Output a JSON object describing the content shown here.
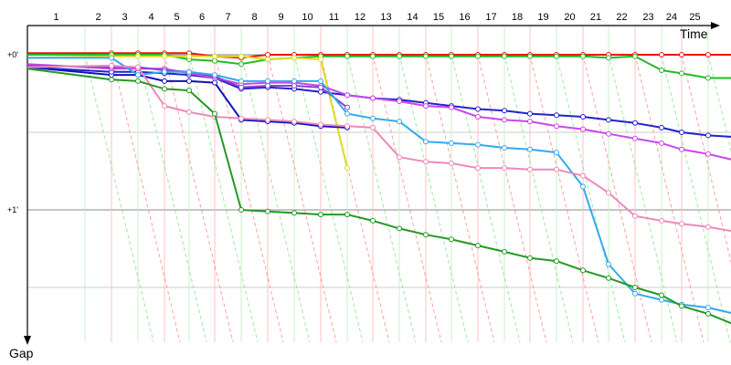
{
  "chart_data": {
    "type": "line",
    "xlabel": "Time",
    "ylabel": "Gap",
    "x_unit": "lap",
    "y_unit": "laps behind leader",
    "xlim": [
      0,
      26
    ],
    "ylim": [
      0,
      2.6
    ],
    "lap_labels": [
      "1",
      "2",
      "3",
      "4",
      "5",
      "6",
      "7",
      "8",
      "9",
      "10",
      "11",
      "12",
      "13",
      "14",
      "15",
      "16",
      "17",
      "18",
      "19",
      "20",
      "21",
      "22",
      "23",
      "24",
      "25"
    ],
    "y_ticks": [
      {
        "label": "+0'",
        "value": 0
      },
      {
        "label": "+1'",
        "value": 1.0
      }
    ],
    "grid": true,
    "legend": "none",
    "diagonal_guides": [
      "#ff8080",
      "#80e080"
    ],
    "series": [
      {
        "color": "#ee1111",
        "x": [
          0,
          2,
          3,
          4,
          5,
          6,
          7,
          8,
          9,
          10,
          11,
          12,
          13,
          14,
          15,
          16,
          17,
          18,
          19,
          20,
          21,
          22,
          23,
          24,
          25,
          26
        ],
        "y": [
          -0.01,
          -0.01,
          -0.01,
          -0.01,
          -0.01,
          0.01,
          0.02,
          0.0,
          0.0,
          0.0,
          0.0,
          0.0,
          0.0,
          0.0,
          0.0,
          0.0,
          0.0,
          0.0,
          0.0,
          0.0,
          0.0,
          0.0,
          0.0,
          0.0,
          0.0,
          0.0
        ]
      },
      {
        "color": "#22bb22",
        "x": [
          0,
          2,
          3,
          4,
          5,
          6,
          7,
          8,
          9,
          10,
          11,
          12,
          13,
          14,
          15,
          16,
          17,
          18,
          19,
          20,
          21,
          22,
          23,
          24,
          25,
          26
        ],
        "y": [
          0.0,
          0.0,
          0.0,
          0.0,
          0.03,
          0.04,
          0.06,
          0.03,
          0.02,
          0.01,
          0.01,
          0.01,
          0.01,
          0.01,
          0.01,
          0.01,
          0.01,
          0.01,
          0.01,
          0.01,
          0.02,
          0.01,
          0.1,
          0.12,
          0.15,
          0.15
        ]
      },
      {
        "color": "#dddd22",
        "x": [
          0,
          2,
          3,
          4,
          5,
          6,
          7,
          8,
          9,
          10,
          11
        ],
        "y": [
          0.02,
          0.01,
          0.01,
          0.01,
          0.01,
          0.01,
          0.01,
          0.03,
          0.02,
          0.03,
          0.73
        ]
      },
      {
        "color": "#1111bb",
        "x": [
          0,
          2,
          3,
          4,
          5,
          6,
          7,
          8,
          9,
          10,
          11
        ],
        "y": [
          0.08,
          0.13,
          0.13,
          0.17,
          0.17,
          0.18,
          0.42,
          0.43,
          0.44,
          0.46,
          0.47
        ]
      },
      {
        "color": "#2222cc",
        "x": [
          0,
          2,
          3,
          4,
          5,
          6,
          7,
          8,
          9,
          10,
          11,
          12,
          13,
          14,
          15,
          16,
          17,
          18,
          19,
          20,
          21,
          22,
          23,
          24,
          25,
          26
        ],
        "y": [
          0.08,
          0.11,
          0.11,
          0.12,
          0.13,
          0.15,
          0.22,
          0.21,
          0.22,
          0.24,
          0.26,
          0.28,
          0.29,
          0.31,
          0.33,
          0.35,
          0.36,
          0.38,
          0.39,
          0.4,
          0.42,
          0.44,
          0.47,
          0.5,
          0.52,
          0.53
        ]
      },
      {
        "color": "#cc44ee",
        "x": [
          0,
          2,
          3,
          4,
          5,
          6,
          7,
          8,
          9,
          10,
          11,
          12,
          13,
          14,
          15,
          16,
          17,
          18,
          19,
          20,
          21,
          22,
          23,
          24,
          25,
          26
        ],
        "y": [
          0.06,
          0.09,
          0.09,
          0.09,
          0.12,
          0.15,
          0.19,
          0.18,
          0.18,
          0.2,
          0.26,
          0.28,
          0.3,
          0.33,
          0.34,
          0.4,
          0.42,
          0.43,
          0.46,
          0.48,
          0.51,
          0.54,
          0.57,
          0.61,
          0.64,
          0.68
        ]
      },
      {
        "color": "#8844cc",
        "x": [
          0,
          2,
          3,
          4,
          5,
          6,
          7,
          8,
          9,
          10,
          11
        ],
        "y": [
          0.07,
          0.08,
          0.08,
          0.1,
          0.11,
          0.14,
          0.21,
          0.2,
          0.2,
          0.21,
          0.34
        ]
      },
      {
        "color": "#33aaee",
        "x": [
          0,
          2,
          3,
          4,
          5,
          6,
          7,
          8,
          9,
          10,
          11,
          12,
          13,
          14,
          15,
          16,
          17,
          18,
          19,
          20,
          21,
          22,
          23,
          24,
          25,
          26
        ],
        "y": [
          0.02,
          0.02,
          0.13,
          0.11,
          0.11,
          0.13,
          0.17,
          0.17,
          0.17,
          0.17,
          0.38,
          0.41,
          0.43,
          0.56,
          0.57,
          0.58,
          0.6,
          0.61,
          0.63,
          0.85,
          1.35,
          1.54,
          1.58,
          1.61,
          1.63,
          1.67
        ]
      },
      {
        "color": "#ee88bb",
        "x": [
          0,
          2,
          3,
          4,
          5,
          6,
          7,
          8,
          9,
          10,
          11,
          12,
          13,
          14,
          15,
          16,
          17,
          18,
          19,
          20,
          21,
          22,
          23,
          24,
          25,
          26
        ],
        "y": [
          0.08,
          0.07,
          0.08,
          0.33,
          0.37,
          0.4,
          0.41,
          0.42,
          0.43,
          0.45,
          0.46,
          0.47,
          0.66,
          0.69,
          0.7,
          0.73,
          0.73,
          0.74,
          0.74,
          0.78,
          0.89,
          1.04,
          1.07,
          1.09,
          1.11,
          1.14
        ]
      },
      {
        "color": "#229922",
        "x": [
          0,
          2,
          3,
          4,
          5,
          6,
          7,
          8,
          9,
          10,
          11,
          12,
          13,
          14,
          15,
          16,
          17,
          18,
          19,
          20,
          21,
          22,
          23,
          24,
          25,
          26
        ],
        "y": [
          0.09,
          0.16,
          0.17,
          0.22,
          0.23,
          0.38,
          1.0,
          1.01,
          1.02,
          1.03,
          1.03,
          1.07,
          1.12,
          1.16,
          1.19,
          1.23,
          1.27,
          1.31,
          1.33,
          1.39,
          1.44,
          1.5,
          1.55,
          1.62,
          1.67,
          1.74
        ]
      }
    ]
  }
}
